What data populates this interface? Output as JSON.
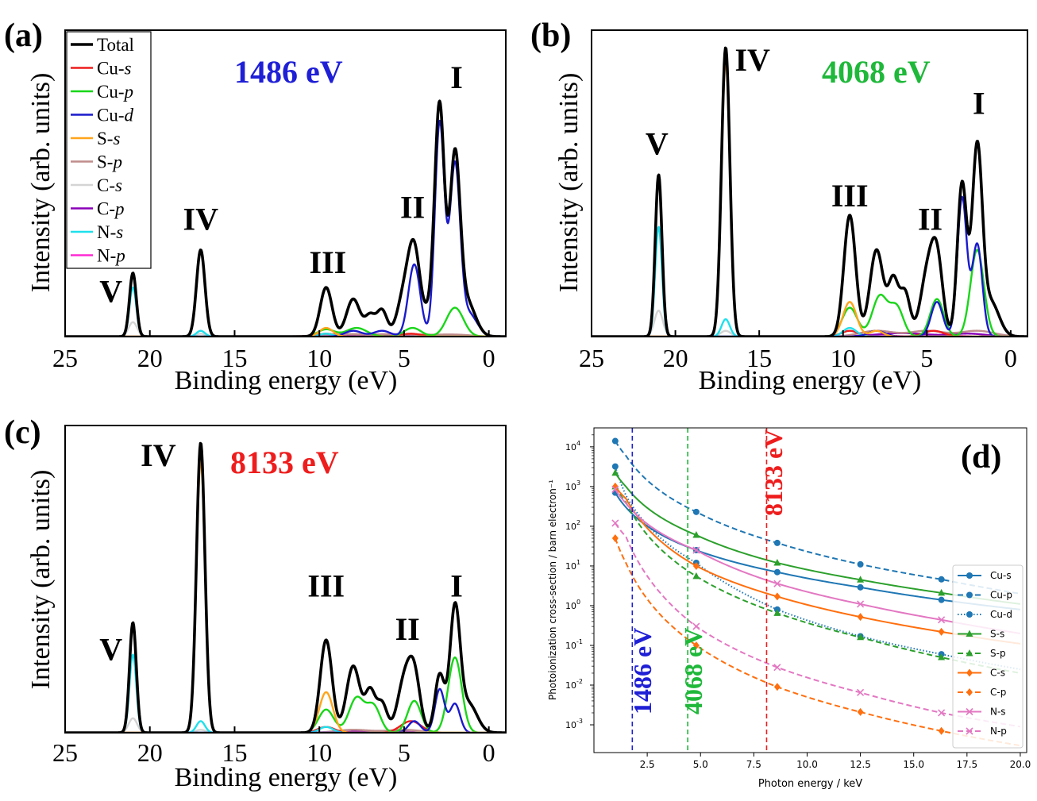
{
  "chart_data": [
    {
      "panel": "(a)",
      "type": "line",
      "photon_energy_label": "1486 eV",
      "photon_energy_color": "#1f1fd6",
      "xlabel": "Binding energy (eV)",
      "ylabel": "Intensity (arb. units)",
      "xlim": [
        25,
        -1
      ],
      "xticks": [
        "25",
        "20",
        "15",
        "10",
        "5",
        "0"
      ],
      "ylim": [
        0,
        1.06
      ],
      "legend_position": "top-left",
      "legend": [
        {
          "name": "Total",
          "italic": ""
        },
        {
          "name": "Cu-",
          "italic": "s"
        },
        {
          "name": "Cu-",
          "italic": "p"
        },
        {
          "name": "Cu-",
          "italic": "d"
        },
        {
          "name": "S-",
          "italic": "s"
        },
        {
          "name": "S-",
          "italic": "p"
        },
        {
          "name": "C-",
          "italic": "s"
        },
        {
          "name": "C-",
          "italic": "p"
        },
        {
          "name": "N-",
          "italic": "s"
        },
        {
          "name": "N-",
          "italic": "p"
        }
      ],
      "peak_labels": [
        {
          "text": "I",
          "x": 1.9,
          "y": 0.86
        },
        {
          "text": "II",
          "x": 4.5,
          "y": 0.41
        },
        {
          "text": "III",
          "x": 9.5,
          "y": 0.22
        },
        {
          "text": "IV",
          "x": 17.0,
          "y": 0.37
        },
        {
          "text": "V",
          "x": 22.3,
          "y": 0.12
        }
      ],
      "series": [
        {
          "name": "Total",
          "peaks": [
            [
              21.0,
              0.22,
              0.2
            ],
            [
              17.0,
              0.3,
              0.25
            ],
            [
              9.6,
              0.17,
              0.35
            ],
            [
              8.0,
              0.13,
              0.4
            ],
            [
              7.0,
              0.07,
              0.3
            ],
            [
              6.3,
              0.09,
              0.3
            ],
            [
              5.0,
              0.14,
              0.4
            ],
            [
              4.4,
              0.28,
              0.35
            ],
            [
              3.3,
              0.1,
              0.45
            ],
            [
              2.9,
              0.74,
              0.28
            ],
            [
              2.0,
              0.6,
              0.3
            ],
            [
              1.3,
              0.12,
              0.5
            ]
          ]
        },
        {
          "name": "Cu-s",
          "peaks": [
            [
              4.6,
              0.01,
              0.6
            ],
            [
              9.6,
              0.01,
              0.5
            ]
          ]
        },
        {
          "name": "Cu-p",
          "peaks": [
            [
              9.6,
              0.025,
              0.5
            ],
            [
              7.8,
              0.03,
              0.6
            ],
            [
              4.5,
              0.03,
              0.5
            ],
            [
              2.0,
              0.1,
              0.5
            ]
          ]
        },
        {
          "name": "Cu-d",
          "peaks": [
            [
              8.0,
              0.02,
              0.5
            ],
            [
              6.3,
              0.02,
              0.5
            ],
            [
              4.4,
              0.25,
              0.35
            ],
            [
              2.9,
              0.74,
              0.28
            ],
            [
              2.0,
              0.58,
              0.3
            ],
            [
              1.2,
              0.08,
              0.5
            ]
          ]
        },
        {
          "name": "S-s",
          "peaks": [
            [
              17.0,
              0.3,
              0.25
            ],
            [
              9.6,
              0.03,
              0.4
            ]
          ]
        },
        {
          "name": "S-p",
          "peaks": [
            [
              8.5,
              0.008,
              1.5
            ],
            [
              5.0,
              0.008,
              1.5
            ],
            [
              2.0,
              0.006,
              1.0
            ]
          ]
        },
        {
          "name": "C-s",
          "peaks": [
            [
              21.0,
              0.05,
              0.25
            ],
            [
              17.0,
              0.01,
              0.3
            ]
          ]
        },
        {
          "name": "C-p",
          "peaks": [
            [
              8.0,
              0.004,
              1.2
            ],
            [
              5.0,
              0.004,
              1.2
            ]
          ]
        },
        {
          "name": "N-s",
          "peaks": [
            [
              21.0,
              0.17,
              0.2
            ],
            [
              17.0,
              0.02,
              0.25
            ],
            [
              9.6,
              0.01,
              0.4
            ]
          ]
        },
        {
          "name": "N-p",
          "peaks": [
            [
              8.0,
              0.002,
              1.0
            ]
          ]
        }
      ]
    },
    {
      "panel": "(b)",
      "type": "line",
      "photon_energy_label": "4068 eV",
      "photon_energy_color": "#1fb83a",
      "xlabel": "Binding energy (eV)",
      "ylabel": "Intensity (arb. units)",
      "xlim": [
        25,
        -1
      ],
      "xticks": [
        "25",
        "20",
        "15",
        "10",
        "5",
        "0"
      ],
      "ylim": [
        0,
        1.06
      ],
      "peak_labels": [
        {
          "text": "I",
          "x": 1.9,
          "y": 0.77
        },
        {
          "text": "II",
          "x": 4.8,
          "y": 0.37
        },
        {
          "text": "III",
          "x": 9.6,
          "y": 0.45
        },
        {
          "text": "IV",
          "x": 15.4,
          "y": 0.92
        },
        {
          "text": "V",
          "x": 21.1,
          "y": 0.63
        }
      ],
      "series": [
        {
          "name": "Total",
          "peaks": [
            [
              21.0,
              0.56,
              0.2
            ],
            [
              17.0,
              1.0,
              0.25
            ],
            [
              9.6,
              0.42,
              0.35
            ],
            [
              8.0,
              0.3,
              0.4
            ],
            [
              7.0,
              0.19,
              0.3
            ],
            [
              6.3,
              0.15,
              0.3
            ],
            [
              5.0,
              0.2,
              0.4
            ],
            [
              4.4,
              0.26,
              0.35
            ],
            [
              2.9,
              0.53,
              0.28
            ],
            [
              2.0,
              0.64,
              0.3
            ],
            [
              1.2,
              0.12,
              0.5
            ]
          ]
        },
        {
          "name": "Cu-s",
          "peaks": [
            [
              4.6,
              0.02,
              0.6
            ],
            [
              9.6,
              0.02,
              0.5
            ]
          ]
        },
        {
          "name": "Cu-p",
          "peaks": [
            [
              9.6,
              0.1,
              0.45
            ],
            [
              7.8,
              0.14,
              0.45
            ],
            [
              6.8,
              0.1,
              0.4
            ],
            [
              4.4,
              0.13,
              0.4
            ],
            [
              2.0,
              0.3,
              0.4
            ]
          ]
        },
        {
          "name": "Cu-d",
          "peaks": [
            [
              8.0,
              0.02,
              0.5
            ],
            [
              4.4,
              0.12,
              0.35
            ],
            [
              2.9,
              0.48,
              0.28
            ],
            [
              2.0,
              0.32,
              0.3
            ]
          ]
        },
        {
          "name": "S-s",
          "peaks": [
            [
              17.0,
              0.95,
              0.25
            ],
            [
              9.6,
              0.12,
              0.4
            ],
            [
              8.0,
              0.02,
              0.4
            ]
          ]
        },
        {
          "name": "S-p",
          "peaks": [
            [
              8.0,
              0.02,
              1.0
            ],
            [
              5.0,
              0.02,
              1.0
            ],
            [
              2.0,
              0.02,
              1.0
            ]
          ]
        },
        {
          "name": "C-s",
          "peaks": [
            [
              21.0,
              0.09,
              0.25
            ],
            [
              17.0,
              0.02,
              0.3
            ]
          ]
        },
        {
          "name": "C-p",
          "peaks": [
            [
              6.5,
              0.012,
              1.5
            ],
            [
              2.5,
              0.01,
              1.0
            ]
          ]
        },
        {
          "name": "N-s",
          "peaks": [
            [
              21.0,
              0.38,
              0.2
            ],
            [
              17.0,
              0.06,
              0.25
            ],
            [
              9.6,
              0.03,
              0.4
            ]
          ]
        },
        {
          "name": "N-p",
          "peaks": [
            [
              8.0,
              0.004,
              1.0
            ],
            [
              4.0,
              0.004,
              1.0
            ]
          ]
        }
      ]
    },
    {
      "panel": "(c)",
      "type": "line",
      "photon_energy_label": "8133 eV",
      "photon_energy_color": "#ee1d1d",
      "xlabel": "Binding energy (eV)",
      "ylabel": "Intensity (arb. units)",
      "xlim": [
        25,
        -1
      ],
      "xticks": [
        "25",
        "20",
        "15",
        "10",
        "5",
        "0"
      ],
      "ylim": [
        0,
        1.06
      ],
      "peak_labels": [
        {
          "text": "I",
          "x": 1.9,
          "y": 0.47
        },
        {
          "text": "II",
          "x": 4.8,
          "y": 0.32
        },
        {
          "text": "III",
          "x": 9.6,
          "y": 0.47
        },
        {
          "text": "IV",
          "x": 19.5,
          "y": 0.92
        },
        {
          "text": "V",
          "x": 22.3,
          "y": 0.25
        }
      ],
      "series": [
        {
          "name": "Total",
          "peaks": [
            [
              21.0,
              0.38,
              0.2
            ],
            [
              17.0,
              1.0,
              0.25
            ],
            [
              9.6,
              0.32,
              0.35
            ],
            [
              8.0,
              0.23,
              0.4
            ],
            [
              7.0,
              0.14,
              0.3
            ],
            [
              6.3,
              0.1,
              0.3
            ],
            [
              5.0,
              0.17,
              0.4
            ],
            [
              4.4,
              0.19,
              0.35
            ],
            [
              2.9,
              0.2,
              0.28
            ],
            [
              2.0,
              0.42,
              0.3
            ],
            [
              1.2,
              0.1,
              0.5
            ]
          ]
        },
        {
          "name": "Cu-s",
          "peaks": [
            [
              4.6,
              0.04,
              0.6
            ],
            [
              9.6,
              0.02,
              0.5
            ]
          ]
        },
        {
          "name": "Cu-p",
          "peaks": [
            [
              9.6,
              0.08,
              0.45
            ],
            [
              7.8,
              0.12,
              0.45
            ],
            [
              6.8,
              0.09,
              0.4
            ],
            [
              4.4,
              0.11,
              0.4
            ],
            [
              2.0,
              0.26,
              0.4
            ]
          ]
        },
        {
          "name": "Cu-d",
          "peaks": [
            [
              4.4,
              0.04,
              0.35
            ],
            [
              2.9,
              0.15,
              0.28
            ],
            [
              2.0,
              0.1,
              0.3
            ]
          ]
        },
        {
          "name": "S-s",
          "peaks": [
            [
              17.0,
              0.94,
              0.25
            ],
            [
              9.6,
              0.14,
              0.4
            ]
          ]
        },
        {
          "name": "S-p",
          "peaks": [
            [
              8.0,
              0.01,
              1.0
            ],
            [
              5.0,
              0.01,
              1.0
            ]
          ]
        },
        {
          "name": "C-s",
          "peaks": [
            [
              21.0,
              0.05,
              0.25
            ],
            [
              17.0,
              0.01,
              0.3
            ]
          ]
        },
        {
          "name": "C-p",
          "peaks": [
            [
              6.5,
              0.006,
              1.5
            ]
          ]
        },
        {
          "name": "N-s",
          "peaks": [
            [
              21.0,
              0.27,
              0.2
            ],
            [
              17.0,
              0.04,
              0.25
            ],
            [
              9.6,
              0.02,
              0.4
            ]
          ]
        },
        {
          "name": "N-p",
          "peaks": [
            [
              8.0,
              0.002,
              1.0
            ]
          ]
        }
      ]
    },
    {
      "panel": "(d)",
      "type": "line",
      "yscale": "log",
      "xlabel": "Photon energy / keV",
      "ylabel": "Photoionization cross-section / barn electron⁻¹",
      "xlim": [
        0,
        20.3
      ],
      "xticks": [
        "2.5",
        "5.0",
        "7.5",
        "10.0",
        "12.5",
        "15.0",
        "17.5",
        "20.0"
      ],
      "xtick_values": [
        2.5,
        5.0,
        7.5,
        10.0,
        12.5,
        15.0,
        17.5,
        20.0
      ],
      "ylim": [
        0.0002,
        30000
      ],
      "yticks": [
        {
          "exp": -3,
          "label": "10",
          "sup": "-3"
        },
        {
          "exp": -2,
          "label": "10",
          "sup": "-2"
        },
        {
          "exp": -1,
          "label": "10",
          "sup": "-1"
        },
        {
          "exp": 0,
          "label": "10",
          "sup": "0"
        },
        {
          "exp": 1,
          "label": "10",
          "sup": "1"
        },
        {
          "exp": 2,
          "label": "10",
          "sup": "2"
        },
        {
          "exp": 3,
          "label": "10",
          "sup": "3"
        },
        {
          "exp": 4,
          "label": "10",
          "sup": "4"
        }
      ],
      "legend_position": "bottom-right",
      "vlines": [
        {
          "x": 1.8,
          "label": "1486 eV",
          "color": "#1f1fd6"
        },
        {
          "x": 4.4,
          "label": "4068 eV",
          "color": "#1fb83a"
        },
        {
          "x": 8.1,
          "label": "8133 eV",
          "color": "#ee1d1d"
        }
      ],
      "x": [
        1.0,
        1.5,
        4.8,
        8.6,
        12.5,
        16.3,
        20.0
      ],
      "series": [
        {
          "name": "Cu-s",
          "color": "#1f77b4",
          "dash": "",
          "marker": "circle",
          "values": [
            700,
            300,
            25,
            7,
            2.9,
            1.4,
            0.8
          ]
        },
        {
          "name": "Cu-p",
          "color": "#1f77b4",
          "dash": "7,4",
          "marker": "circle",
          "values": [
            14000,
            6000,
            230,
            38,
            11,
            4.6,
            2.0
          ]
        },
        {
          "name": "Cu-d",
          "color": "#1f77b4",
          "dash": "1.5,2.5",
          "marker": "circle",
          "values": [
            3200,
            600,
            12,
            0.8,
            0.17,
            0.06,
            0.025
          ]
        },
        {
          "name": "S-s",
          "color": "#2ca02c",
          "dash": "",
          "marker": "triangle",
          "values": [
            2200,
            1000,
            60,
            12,
            4.5,
            2.1,
            1.1
          ]
        },
        {
          "name": "S-p",
          "color": "#2ca02c",
          "dash": "7,4",
          "marker": "triangle",
          "values": [
            1000,
            400,
            5.5,
            0.65,
            0.16,
            0.05,
            0.02
          ]
        },
        {
          "name": "C-s",
          "color": "#ff6f0e",
          "dash": "",
          "marker": "diamond",
          "values": [
            1000,
            500,
            10,
            1.7,
            0.52,
            0.22,
            0.11
          ]
        },
        {
          "name": "C-p",
          "color": "#ff6f0e",
          "dash": "7,4",
          "marker": "diamond",
          "values": [
            50,
            12,
            0.1,
            0.009,
            0.0021,
            0.0007,
            0.0003
          ]
        },
        {
          "name": "N-s",
          "color": "#e377c2",
          "dash": "",
          "marker": "x",
          "values": [
            850,
            380,
            25,
            3.6,
            1.1,
            0.44,
            0.2
          ]
        },
        {
          "name": "N-p",
          "color": "#e377c2",
          "dash": "7,4",
          "marker": "x",
          "values": [
            120,
            55,
            0.3,
            0.028,
            0.0065,
            0.002,
            0.0009
          ]
        }
      ]
    }
  ],
  "styles": {
    "Total": "#000000",
    "Cu-s": "#ee1d1d",
    "Cu-p": "#19d619",
    "Cu-d": "#1a1acc",
    "S-s": "#ffa41b",
    "S-p": "#c08c8c",
    "C-s": "#d4d4d4",
    "C-p": "#8a00b8",
    "N-s": "#1ee0ec",
    "N-p": "#ff2ad4"
  }
}
